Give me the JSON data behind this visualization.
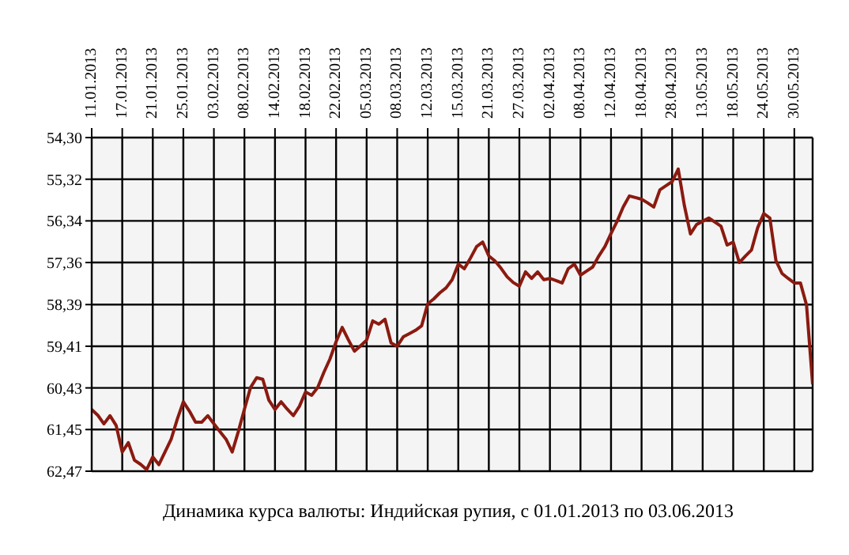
{
  "chart_data": {
    "type": "line",
    "title": "Динамика курса валюты: Индийская рупия, с 01.01.2013 по 03.06.2013",
    "categories": [
      "11.01.2013",
      null,
      null,
      null,
      null,
      "17.01.2013",
      null,
      null,
      null,
      null,
      "21.01.2013",
      null,
      null,
      null,
      null,
      "25.01.2013",
      null,
      null,
      null,
      null,
      "03.02.2013",
      null,
      null,
      null,
      null,
      "08.02.2013",
      null,
      null,
      null,
      null,
      "14.02.2013",
      null,
      null,
      null,
      null,
      "18.02.2013",
      null,
      null,
      null,
      null,
      "22.02.2013",
      null,
      null,
      null,
      null,
      "05.03.2013",
      null,
      null,
      null,
      null,
      "08.03.2013",
      null,
      null,
      null,
      null,
      "12.03.2013",
      null,
      null,
      null,
      null,
      "15.03.2013",
      null,
      null,
      null,
      null,
      "21.03.2013",
      null,
      null,
      null,
      null,
      "27.03.2013",
      null,
      null,
      null,
      null,
      "02.04.2013",
      null,
      null,
      null,
      null,
      "08.04.2013",
      null,
      null,
      null,
      null,
      "12.04.2013",
      null,
      null,
      null,
      null,
      "18.04.2013",
      null,
      null,
      null,
      null,
      "28.04.2013",
      null,
      null,
      null,
      null,
      "13.05.2013",
      null,
      null,
      null,
      null,
      "18.05.2013",
      null,
      null,
      null,
      null,
      "24.05.2013",
      null,
      null,
      null,
      null,
      "30.05.2013",
      null,
      null,
      null
    ],
    "ylim": [
      62.47,
      54.3
    ],
    "yticks": [
      {
        "value": 54.3,
        "label": "54,30"
      },
      {
        "value": 55.32,
        "label": "55,32"
      },
      {
        "value": 56.34,
        "label": "56,34"
      },
      {
        "value": 57.36,
        "label": "57,36"
      },
      {
        "value": 58.39,
        "label": "58,39"
      },
      {
        "value": 59.41,
        "label": "59,41"
      },
      {
        "value": 60.43,
        "label": "60,43"
      },
      {
        "value": 61.45,
        "label": "61,45"
      },
      {
        "value": 62.47,
        "label": "62,47"
      }
    ],
    "grid": true,
    "marker": "none",
    "line_style": "solid",
    "series": [
      {
        "color": "#8b1a10",
        "values": [
          60.96,
          61.1,
          61.31,
          61.11,
          61.35,
          62.0,
          61.77,
          62.2,
          62.3,
          62.43,
          62.12,
          62.31,
          62.0,
          61.69,
          61.2,
          60.77,
          61.0,
          61.27,
          61.27,
          61.11,
          61.31,
          61.5,
          61.69,
          62.0,
          61.5,
          60.95,
          60.42,
          60.18,
          60.22,
          60.73,
          60.96,
          60.77,
          60.95,
          61.11,
          60.88,
          60.53,
          60.61,
          60.42,
          60.05,
          59.72,
          59.3,
          58.95,
          59.25,
          59.53,
          59.4,
          59.26,
          58.79,
          58.87,
          58.75,
          59.33,
          59.41,
          59.18,
          59.1,
          59.02,
          58.91,
          58.37,
          58.25,
          58.1,
          57.98,
          57.78,
          57.4,
          57.51,
          57.25,
          56.97,
          56.86,
          57.2,
          57.32,
          57.5,
          57.71,
          57.85,
          57.94,
          57.59,
          57.75,
          57.59,
          57.78,
          57.75,
          57.8,
          57.86,
          57.51,
          57.4,
          57.67,
          57.57,
          57.47,
          57.2,
          56.97,
          56.65,
          56.35,
          56.0,
          55.73,
          55.77,
          55.81,
          55.9,
          56.0,
          55.58,
          55.48,
          55.38,
          55.07,
          55.96,
          56.66,
          56.43,
          56.35,
          56.27,
          56.37,
          56.47,
          56.93,
          56.86,
          57.36,
          57.2,
          57.05,
          56.51,
          56.16,
          56.27,
          57.32,
          57.63,
          57.75,
          57.86,
          57.86,
          58.4,
          60.34
        ]
      }
    ]
  }
}
